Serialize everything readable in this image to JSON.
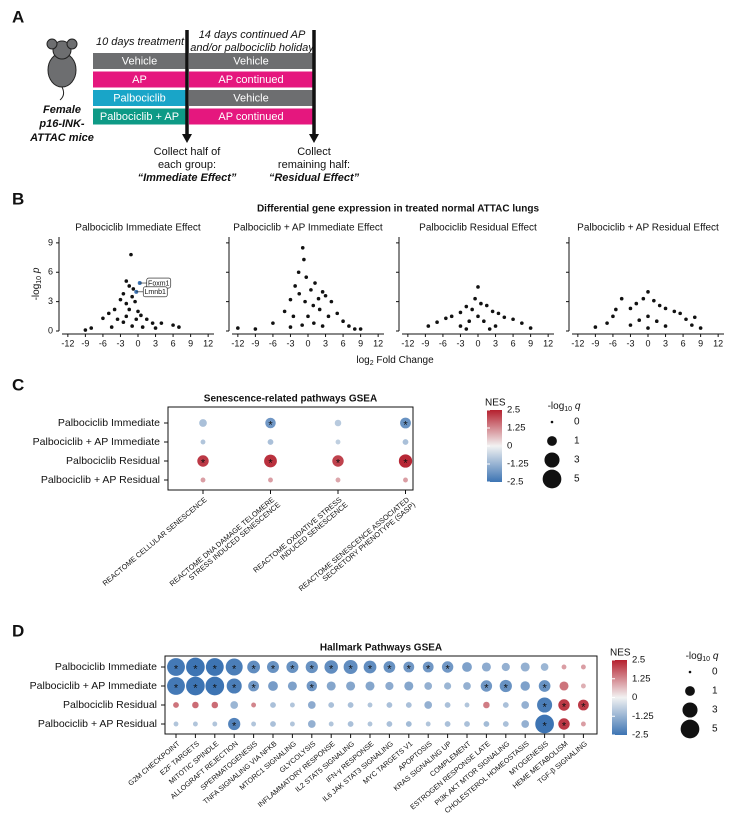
{
  "panel_a": {
    "label": "A",
    "mouse_label": [
      "Female",
      "p16-INK-",
      "ATTAC mice"
    ],
    "phase1": "10 days treatment",
    "phase2": [
      "14 days continued AP",
      "and/or palbociclib holiday"
    ],
    "groups": [
      {
        "treatment": "Vehicle",
        "treatment_color": "#6d6e70",
        "followup": "Vehicle",
        "followup_color": "#6d6e70"
      },
      {
        "treatment": "AP",
        "treatment_color": "#e5177e",
        "followup": "AP continued",
        "followup_color": "#e5177e"
      },
      {
        "treatment": "Palbociclib",
        "treatment_color": "#19a5c8",
        "followup": "Vehicle",
        "followup_color": "#6d6e70"
      },
      {
        "treatment": "Palbociclib + AP",
        "treatment_color": "#0e9a86",
        "followup": "AP continued",
        "followup_color": "#e5177e"
      }
    ],
    "collections": [
      {
        "lines": [
          "Collect half of",
          "each group:"
        ],
        "effect": "“Immediate Effect”"
      },
      {
        "lines": [
          "Collect",
          "remaining half:"
        ],
        "effect": "“Residual Effect”"
      }
    ]
  },
  "panel_b": {
    "label": "B",
    "title": "Differential gene expression in treated normal ATTAC lungs",
    "xlabel": {
      "base": "log",
      "sub": "2",
      "rest": " Fold Change"
    },
    "ylabel": {
      "base": "-log",
      "sub": "10",
      "rest": " p"
    },
    "xlim": [
      -13,
      13
    ],
    "xticks": [
      -12,
      -9,
      -6,
      -3,
      0,
      3,
      6,
      9,
      12
    ],
    "ylim": [
      0,
      9.6
    ],
    "yticks": [
      0,
      3,
      6,
      9
    ],
    "color": "#111111",
    "charts": [
      {
        "type": "scatter",
        "title": "Palbociclib Immediate Effect",
        "x": [
          -1.2,
          -2,
          -1.5,
          -0.8,
          -2.5,
          -3,
          -1,
          -0.5,
          -4,
          -2,
          -1.5,
          0,
          0.5,
          -6,
          -5,
          -3.5,
          -2.5,
          1.5,
          2.5,
          4,
          6,
          -8,
          -9,
          7,
          -1,
          0.8,
          3,
          -4.5,
          -2,
          -0.3
        ],
        "y": [
          7.8,
          5.1,
          4.6,
          4.3,
          3.8,
          3.2,
          3.5,
          3.0,
          2.2,
          2.8,
          2.2,
          2.0,
          1.6,
          1.3,
          1.8,
          1.2,
          0.9,
          1.2,
          0.8,
          0.8,
          0.6,
          0.3,
          0.1,
          0.4,
          0.5,
          0.4,
          0.3,
          0.4,
          1.5,
          1.2
        ],
        "annotations": [
          {
            "text": "Foxm1",
            "x": 0.3,
            "y": 4.9
          },
          {
            "text": "Lmnb1",
            "x": -0.3,
            "y": 4.0
          }
        ]
      },
      {
        "type": "scatter",
        "title": "Palbociclib + AP Immediate Effect",
        "x": [
          -0.9,
          -0.7,
          -1.6,
          -0.3,
          1.2,
          -2.2,
          0.5,
          2.5,
          -1.5,
          3,
          1.8,
          -3,
          4,
          -0.5,
          0.9,
          2,
          -4,
          5,
          3.5,
          -2.5,
          6,
          -6,
          7,
          -9,
          -12,
          9,
          0,
          1,
          -1,
          2.5,
          -3,
          8
        ],
        "y": [
          8.5,
          7.3,
          6,
          5.5,
          4.9,
          4.6,
          4.2,
          4,
          3.8,
          3.6,
          3.3,
          3.2,
          3,
          3,
          2.6,
          2.2,
          2,
          1.8,
          1.5,
          1.5,
          1,
          0.8,
          0.5,
          0.2,
          0.3,
          0.2,
          1.5,
          0.8,
          0.6,
          0.5,
          0.4,
          0.2
        ]
      },
      {
        "type": "scatter",
        "title": "Palbociclib Residual Effect",
        "x": [
          0,
          -0.5,
          0.5,
          -2,
          1.5,
          -1,
          2.5,
          -3,
          3.5,
          -4.5,
          4.5,
          -5.5,
          6,
          -7,
          7.5,
          -8.5,
          0,
          1,
          -1.5,
          -3,
          3,
          2,
          -2,
          9
        ],
        "y": [
          4.5,
          3.3,
          2.8,
          2.5,
          2.6,
          2.2,
          2.0,
          1.9,
          1.8,
          1.5,
          1.4,
          1.3,
          1.2,
          0.9,
          0.8,
          0.5,
          1.5,
          1,
          1,
          0.5,
          0.5,
          0.2,
          0.2,
          0.3
        ]
      },
      {
        "type": "scatter",
        "title": "Palbociclib + AP Residual Effect",
        "x": [
          0,
          -0.8,
          1,
          -4.5,
          -2,
          2,
          -3,
          3,
          -5.5,
          4.5,
          5.5,
          -6,
          6.5,
          -7,
          7.5,
          9,
          -9,
          0,
          -1.5,
          1.5,
          -3,
          3,
          0,
          8
        ],
        "y": [
          4,
          3.3,
          3.1,
          3.3,
          2.8,
          2.6,
          2.3,
          2.3,
          2.2,
          2,
          1.8,
          1.5,
          1.2,
          0.8,
          0.6,
          0.3,
          0.4,
          1.5,
          1.1,
          1,
          0.6,
          0.5,
          0.3,
          1.4
        ]
      }
    ]
  },
  "panel_c": {
    "label": "C",
    "title": "Senescence-related pathways GSEA",
    "rows": [
      "Palbociclib Immediate",
      "Palbociclib + AP Immediate",
      "Palbociclib Residual",
      "Palbociclib + AP Residual"
    ],
    "columns": [
      [
        "REACTOME CELLULAR SENESCENCE"
      ],
      [
        "REACTOME DNA DAMAGE TELOMERE",
        "STRESS INDUCED SENESCENCE"
      ],
      [
        "REACTOME OXIDATIVE STRESS",
        "INDUCED SENESCENCE"
      ],
      [
        "REACTOME SENESCENCE ASSOCIATED",
        "SECRETORY PHENOTYPE (SASP)"
      ]
    ],
    "nes": [
      [
        -1.0,
        -1.8,
        -0.8,
        -1.9
      ],
      [
        -0.9,
        -1.0,
        -0.7,
        -1.0
      ],
      [
        2.2,
        2.3,
        2.1,
        2.4
      ],
      [
        1.0,
        1.0,
        0.9,
        1.0
      ]
    ],
    "neglog10q": [
      [
        0.5,
        1.2,
        0.3,
        1.3
      ],
      [
        0.1,
        0.2,
        0.1,
        0.2
      ],
      [
        1.5,
        2.0,
        1.5,
        2.2
      ],
      [
        0.1,
        0.1,
        0.1,
        0.1
      ]
    ],
    "significant": [
      [
        false,
        true,
        false,
        true
      ],
      [
        false,
        false,
        false,
        false
      ],
      [
        true,
        true,
        true,
        true
      ],
      [
        false,
        false,
        false,
        false
      ]
    ],
    "sig_symbol": "*",
    "nes_legend": {
      "title": "NES",
      "lim": [
        -2.5,
        2.5
      ],
      "ticks": [
        2.5,
        1.25,
        0,
        -1.25,
        -2.5
      ],
      "colors": [
        "#3d74b3",
        "#f2f2f2",
        "#b5202e"
      ]
    },
    "q_legend": {
      "title": {
        "base": "-log",
        "sub": "10",
        "rest": " q"
      },
      "values": [
        0,
        1,
        3,
        5
      ]
    }
  },
  "panel_d": {
    "label": "D",
    "title": "Hallmark Pathways GSEA",
    "rows": [
      "Palbociclib Immediate",
      "Palbociclib + AP Immediate",
      "Palbociclib Residual",
      "Palbociclib + AP Residual"
    ],
    "columns": [
      "G2M CHECKPOINT",
      "E2F TARGETS",
      "MITOTIC SPINDLE",
      "ALLOGRAFT REJECTION",
      "SPERMATOGENESIS",
      "TNFA SIGNALING VIA NFKB",
      "MTORC1 SIGNALING",
      "GLYCOLYSIS",
      "INFLAMMATORY RESPONSE",
      "IL2 STAT5 SIGNALING",
      "IFN-γ RESPONSE",
      "IL6 JAK STAT3 SIGNALING",
      "MYC TARGETS V1",
      "APOPTOSIS",
      "KRAS SIGNALING UP",
      "COMPLEMENT",
      "ESTROGEN RESPONSE LATE",
      "PI3K AKT MTOR SIGNALING",
      "CHOLESTEROL HOMEOSTASIS",
      "MYOGENESIS",
      "HEME METABOLISM",
      "TGF-β SIGNALING"
    ],
    "nes": [
      [
        -2.4,
        -2.5,
        -2.5,
        -2.3,
        -2.0,
        -1.9,
        -1.9,
        -1.9,
        -2.0,
        -2.0,
        -2.0,
        -1.9,
        -1.8,
        -1.8,
        -1.8,
        -1.6,
        -1.4,
        -1.3,
        -1.3,
        -1.2,
        1.0,
        1.0
      ],
      [
        -2.4,
        -2.5,
        -2.5,
        -2.3,
        -1.8,
        -1.7,
        -1.6,
        -1.8,
        -1.5,
        -1.5,
        -1.5,
        -1.4,
        -1.5,
        -1.3,
        -1.2,
        -1.3,
        -1.8,
        -1.9,
        -1.6,
        -1.9,
        1.5,
        0.8
      ],
      [
        1.5,
        1.6,
        1.6,
        -1.2,
        1.3,
        -1.0,
        -0.9,
        -1.4,
        -1.0,
        -1.0,
        -0.9,
        -1.0,
        -1.0,
        -1.3,
        -1.0,
        -0.9,
        1.4,
        -1.0,
        -1.3,
        -2.3,
        2.2,
        2.2
      ],
      [
        -0.9,
        -0.9,
        -0.9,
        -2.2,
        -0.9,
        -1.0,
        -0.9,
        -1.3,
        -0.9,
        -1.0,
        -0.9,
        -1.0,
        -1.1,
        -0.9,
        -1.0,
        -1.0,
        -1.1,
        -1.0,
        -1.3,
        -2.5,
        2.2,
        1.0
      ]
    ],
    "neglog10q": [
      [
        4.5,
        5,
        4.5,
        4,
        2,
        1.7,
        1.7,
        1.8,
        2.3,
        2.5,
        2,
        1.6,
        1.3,
        1.3,
        1.5,
        1,
        0.8,
        0.6,
        0.8,
        0.5,
        0.1,
        0.1
      ],
      [
        4.5,
        5,
        5,
        3,
        1.3,
        1,
        0.8,
        1.2,
        0.8,
        0.8,
        0.8,
        0.6,
        0.8,
        0.5,
        0.4,
        0.5,
        1.5,
        1.8,
        0.9,
        1.6,
        0.8,
        0.1
      ],
      [
        0.2,
        0.3,
        0.3,
        0.5,
        0.1,
        0.2,
        0.1,
        0.5,
        0.2,
        0.2,
        0.1,
        0.2,
        0.2,
        0.5,
        0.2,
        0.1,
        0.3,
        0.2,
        0.5,
        3,
        1.5,
        1.3
      ],
      [
        0.1,
        0.1,
        0.1,
        1.8,
        0.1,
        0.2,
        0.1,
        0.5,
        0.1,
        0.2,
        0.1,
        0.2,
        0.2,
        0.1,
        0.2,
        0.2,
        0.2,
        0.2,
        0.5,
        5,
        1.5,
        0.1
      ]
    ],
    "significant": [
      [
        true,
        true,
        true,
        true,
        true,
        true,
        true,
        true,
        true,
        true,
        true,
        true,
        true,
        true,
        true,
        false,
        false,
        false,
        false,
        false,
        false,
        false
      ],
      [
        true,
        true,
        true,
        true,
        true,
        false,
        false,
        true,
        false,
        false,
        false,
        false,
        false,
        false,
        false,
        false,
        true,
        true,
        false,
        true,
        false,
        false
      ],
      [
        false,
        false,
        false,
        false,
        false,
        false,
        false,
        false,
        false,
        false,
        false,
        false,
        false,
        false,
        false,
        false,
        false,
        false,
        false,
        true,
        true,
        true
      ],
      [
        false,
        false,
        false,
        true,
        false,
        false,
        false,
        false,
        false,
        false,
        false,
        false,
        false,
        false,
        false,
        false,
        false,
        false,
        false,
        true,
        true,
        false
      ]
    ],
    "sig_symbol": "*",
    "nes_legend": {
      "title": "NES",
      "lim": [
        -2.5,
        2.5
      ],
      "ticks": [
        2.5,
        1.25,
        0,
        -1.25,
        -2.5
      ],
      "colors": [
        "#3d74b3",
        "#f2f2f2",
        "#b5202e"
      ]
    },
    "q_legend": {
      "title": {
        "base": "-log",
        "sub": "10",
        "rest": " q"
      },
      "values": [
        0,
        1,
        3,
        5
      ]
    }
  }
}
